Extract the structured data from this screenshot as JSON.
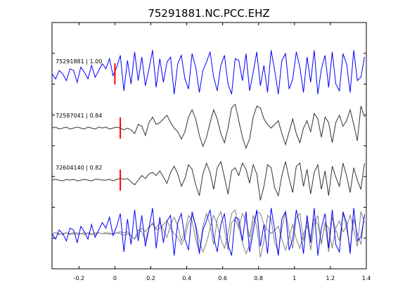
{
  "chart_data": {
    "type": "line",
    "title": "75291881.NC.PCC.EHZ",
    "xlabel": "",
    "ylabel": "",
    "xlim": [
      -0.35,
      1.4
    ],
    "xticks": [
      -0.2,
      0,
      0.2,
      0.4,
      0.6,
      0.8,
      1,
      1.2,
      1.4
    ],
    "xtick_labels": [
      "-0.2",
      "0",
      "0.2",
      "0.4",
      "0.6",
      "0.8",
      "1",
      "1.2",
      "1.4"
    ],
    "ytick_count": 9,
    "grid": false,
    "colors": {
      "primary": "#0000ff",
      "secondary": "#333333",
      "overlay_gray": "#808080",
      "pick": "#ff0000"
    },
    "traces": [
      {
        "name": "75291881 | 1.00",
        "color": "#0000ff",
        "pick_time": 0.0,
        "t0": -0.35,
        "dt": 0.02,
        "values": [
          0.0,
          -0.3,
          0.2,
          0.0,
          -0.4,
          0.3,
          0.2,
          -0.5,
          0.4,
          0.1,
          -0.3,
          0.5,
          -0.2,
          0.2,
          0.6,
          0.3,
          0.9,
          -0.1,
          0.4,
          1.1,
          -1.0,
          0.8,
          -0.6,
          1.3,
          -0.4,
          1.0,
          -0.7,
          0.3,
          1.4,
          -0.8,
          0.9,
          -0.5,
          0.7,
          1.0,
          -1.2,
          0.6,
          1.1,
          -0.3,
          -0.9,
          1.2,
          0.4,
          -1.1,
          0.2,
          0.7,
          1.3,
          -0.2,
          -1.0,
          0.5,
          1.1,
          -0.6,
          -1.2,
          0.9,
          0.8,
          -0.4,
          1.2,
          -1.0,
          0.1,
          1.3,
          -0.7,
          0.5,
          -1.1,
          1.4,
          0.2,
          -1.2,
          0.8,
          1.2,
          -0.9,
          -0.3,
          1.3,
          0.4,
          -1.1,
          1.0,
          -0.5,
          1.4,
          -1.2,
          0.3,
          1.1,
          -0.8,
          1.3,
          -0.6,
          -1.0,
          1.2,
          0.6,
          -1.1,
          1.4,
          -0.4,
          -0.2,
          1.0,
          -1.0,
          1.2,
          0.3,
          -0.9
        ]
      },
      {
        "name": "72587041 | 0.84",
        "color": "#333333",
        "pick_time": 0.03,
        "t0": -0.35,
        "dt": 0.02,
        "values": [
          0.0,
          0.05,
          -0.05,
          0.0,
          0.05,
          -0.05,
          0.0,
          0.05,
          0.0,
          -0.05,
          0.05,
          0.0,
          -0.05,
          0.05,
          0.0,
          0.05,
          -0.05,
          0.0,
          0.05,
          0.0,
          -0.1,
          0.0,
          -0.1,
          -0.3,
          0.2,
          0.1,
          -0.4,
          0.3,
          0.6,
          0.2,
          0.3,
          0.5,
          0.7,
          0.3,
          0.0,
          -0.2,
          -0.6,
          -0.2,
          0.6,
          1.0,
          0.5,
          -0.4,
          -1.0,
          -0.5,
          0.3,
          1.0,
          0.5,
          -0.3,
          -0.8,
          0.0,
          1.1,
          1.3,
          0.4,
          -0.5,
          -1.1,
          -0.6,
          0.6,
          1.2,
          1.1,
          0.5,
          0.2,
          0.0,
          0.2,
          0.4,
          -0.3,
          -0.9,
          -0.2,
          0.5,
          -0.3,
          -0.8,
          0.0,
          0.4,
          -0.2,
          0.8,
          0.5,
          -0.5,
          0.6,
          0.3,
          -0.8,
          0.3,
          0.7,
          0.1,
          0.4,
          1.0,
          0.2,
          -0.7,
          1.2,
          0.6,
          -0.3,
          0.9,
          -0.6,
          1.2
        ]
      },
      {
        "name": "72604140 | 0.82",
        "color": "#333333",
        "pick_time": 0.03,
        "t0": -0.35,
        "dt": 0.02,
        "values": [
          0.0,
          0.05,
          0.0,
          -0.05,
          0.05,
          0.0,
          0.05,
          -0.05,
          0.0,
          0.05,
          0.0,
          -0.05,
          0.05,
          0.05,
          0.0,
          0.0,
          0.05,
          -0.05,
          0.05,
          0.1,
          0.05,
          0.1,
          -0.1,
          -0.3,
          0.0,
          0.3,
          0.1,
          0.4,
          0.5,
          0.3,
          0.6,
          0.2,
          -0.2,
          0.5,
          0.9,
          0.4,
          -0.4,
          0.1,
          1.0,
          0.7,
          -0.3,
          -1.0,
          0.4,
          1.1,
          0.5,
          -0.6,
          0.8,
          1.2,
          0.2,
          -0.9,
          0.6,
          0.8,
          0.3,
          1.1,
          0.7,
          -0.2,
          1.0,
          0.4,
          -1.3,
          -0.4,
          1.0,
          0.8,
          -0.5,
          -1.0,
          0.3,
          1.2,
          0.1,
          -0.8,
          0.9,
          1.1,
          -0.4,
          0.7,
          -0.9,
          0.5,
          1.0,
          -0.6,
          0.6,
          -1.0,
          0.9,
          0.2,
          -0.4,
          1.1,
          0.3,
          -0.8,
          0.8,
          0.0,
          -0.6,
          1.1,
          0.4,
          -0.2,
          1.2,
          0.5
        ]
      }
    ]
  }
}
